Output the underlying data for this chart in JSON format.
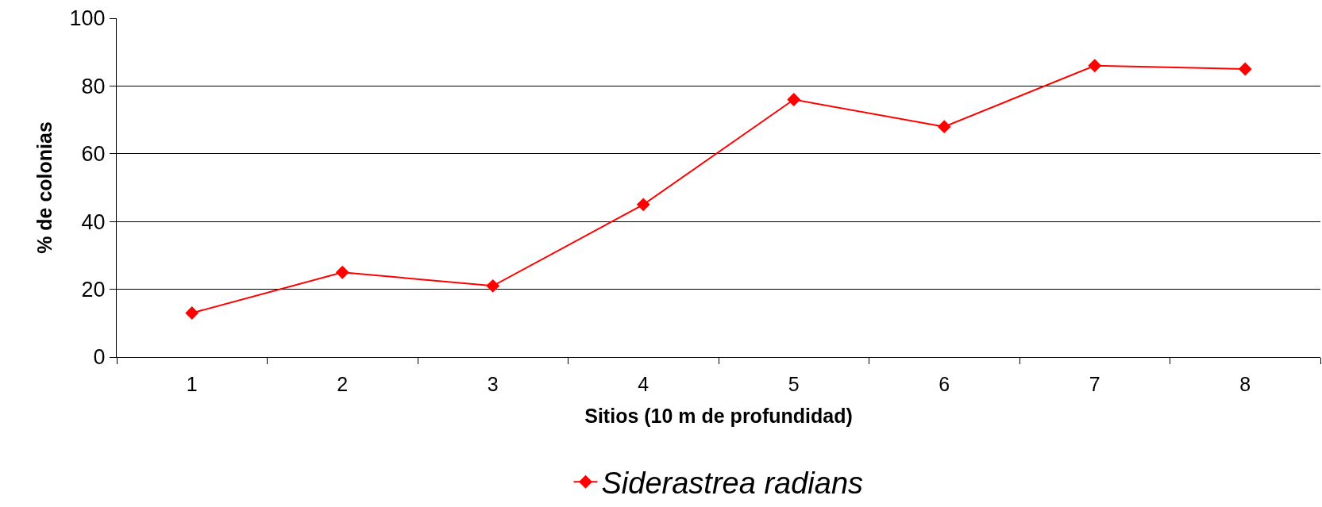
{
  "chart_data": {
    "type": "line",
    "xlabel": "Sitios (10 m de profundidad)",
    "ylabel": "% de colonias",
    "categories": [
      "1",
      "2",
      "3",
      "4",
      "5",
      "6",
      "7",
      "8"
    ],
    "series": [
      {
        "name": "Siderastrea radians",
        "color": "#ff0000",
        "values": [
          13,
          25,
          21,
          45,
          76,
          68,
          86,
          85
        ]
      }
    ],
    "ylim": [
      0,
      100
    ],
    "yticks": [
      0,
      20,
      40,
      60,
      80,
      100
    ],
    "grid": "y",
    "legend": "bottom",
    "marker": "diamond",
    "line_style": "solid"
  }
}
